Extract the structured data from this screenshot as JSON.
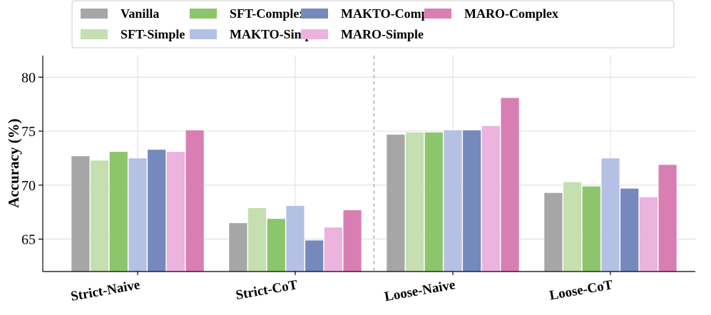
{
  "chart_data": {
    "type": "bar",
    "title": "",
    "xlabel": "",
    "ylabel": "Accuracy (%)",
    "ylim": [
      62,
      82
    ],
    "yticks": [
      65,
      70,
      75,
      80
    ],
    "grid": true,
    "legend_position": "top",
    "separator_after_category": 1,
    "categories": [
      "Strict-Naive",
      "Strict-CoT",
      "Loose-Naive",
      "Loose-CoT"
    ],
    "series": [
      {
        "name": "Vanilla",
        "color": "#a6a6a6",
        "values": [
          72.7,
          66.5,
          74.7,
          69.3
        ]
      },
      {
        "name": "SFT-Simple",
        "color": "#c5dfb0",
        "values": [
          72.3,
          67.9,
          74.9,
          70.3
        ]
      },
      {
        "name": "SFT-Complex",
        "color": "#8dc56c",
        "values": [
          73.1,
          66.9,
          74.9,
          69.9
        ]
      },
      {
        "name": "MAKTO-Simple",
        "color": "#b4c0e4",
        "values": [
          72.5,
          68.1,
          75.1,
          72.5
        ]
      },
      {
        "name": "MAKTO-Complex",
        "color": "#7589bd",
        "values": [
          73.3,
          64.9,
          75.1,
          69.7
        ]
      },
      {
        "name": "MARO-Simple",
        "color": "#ebb3de",
        "values": [
          73.1,
          66.1,
          75.5,
          68.9
        ]
      },
      {
        "name": "MARO-Complex",
        "color": "#d97eb2",
        "values": [
          75.1,
          67.7,
          78.1,
          71.9
        ]
      }
    ]
  }
}
